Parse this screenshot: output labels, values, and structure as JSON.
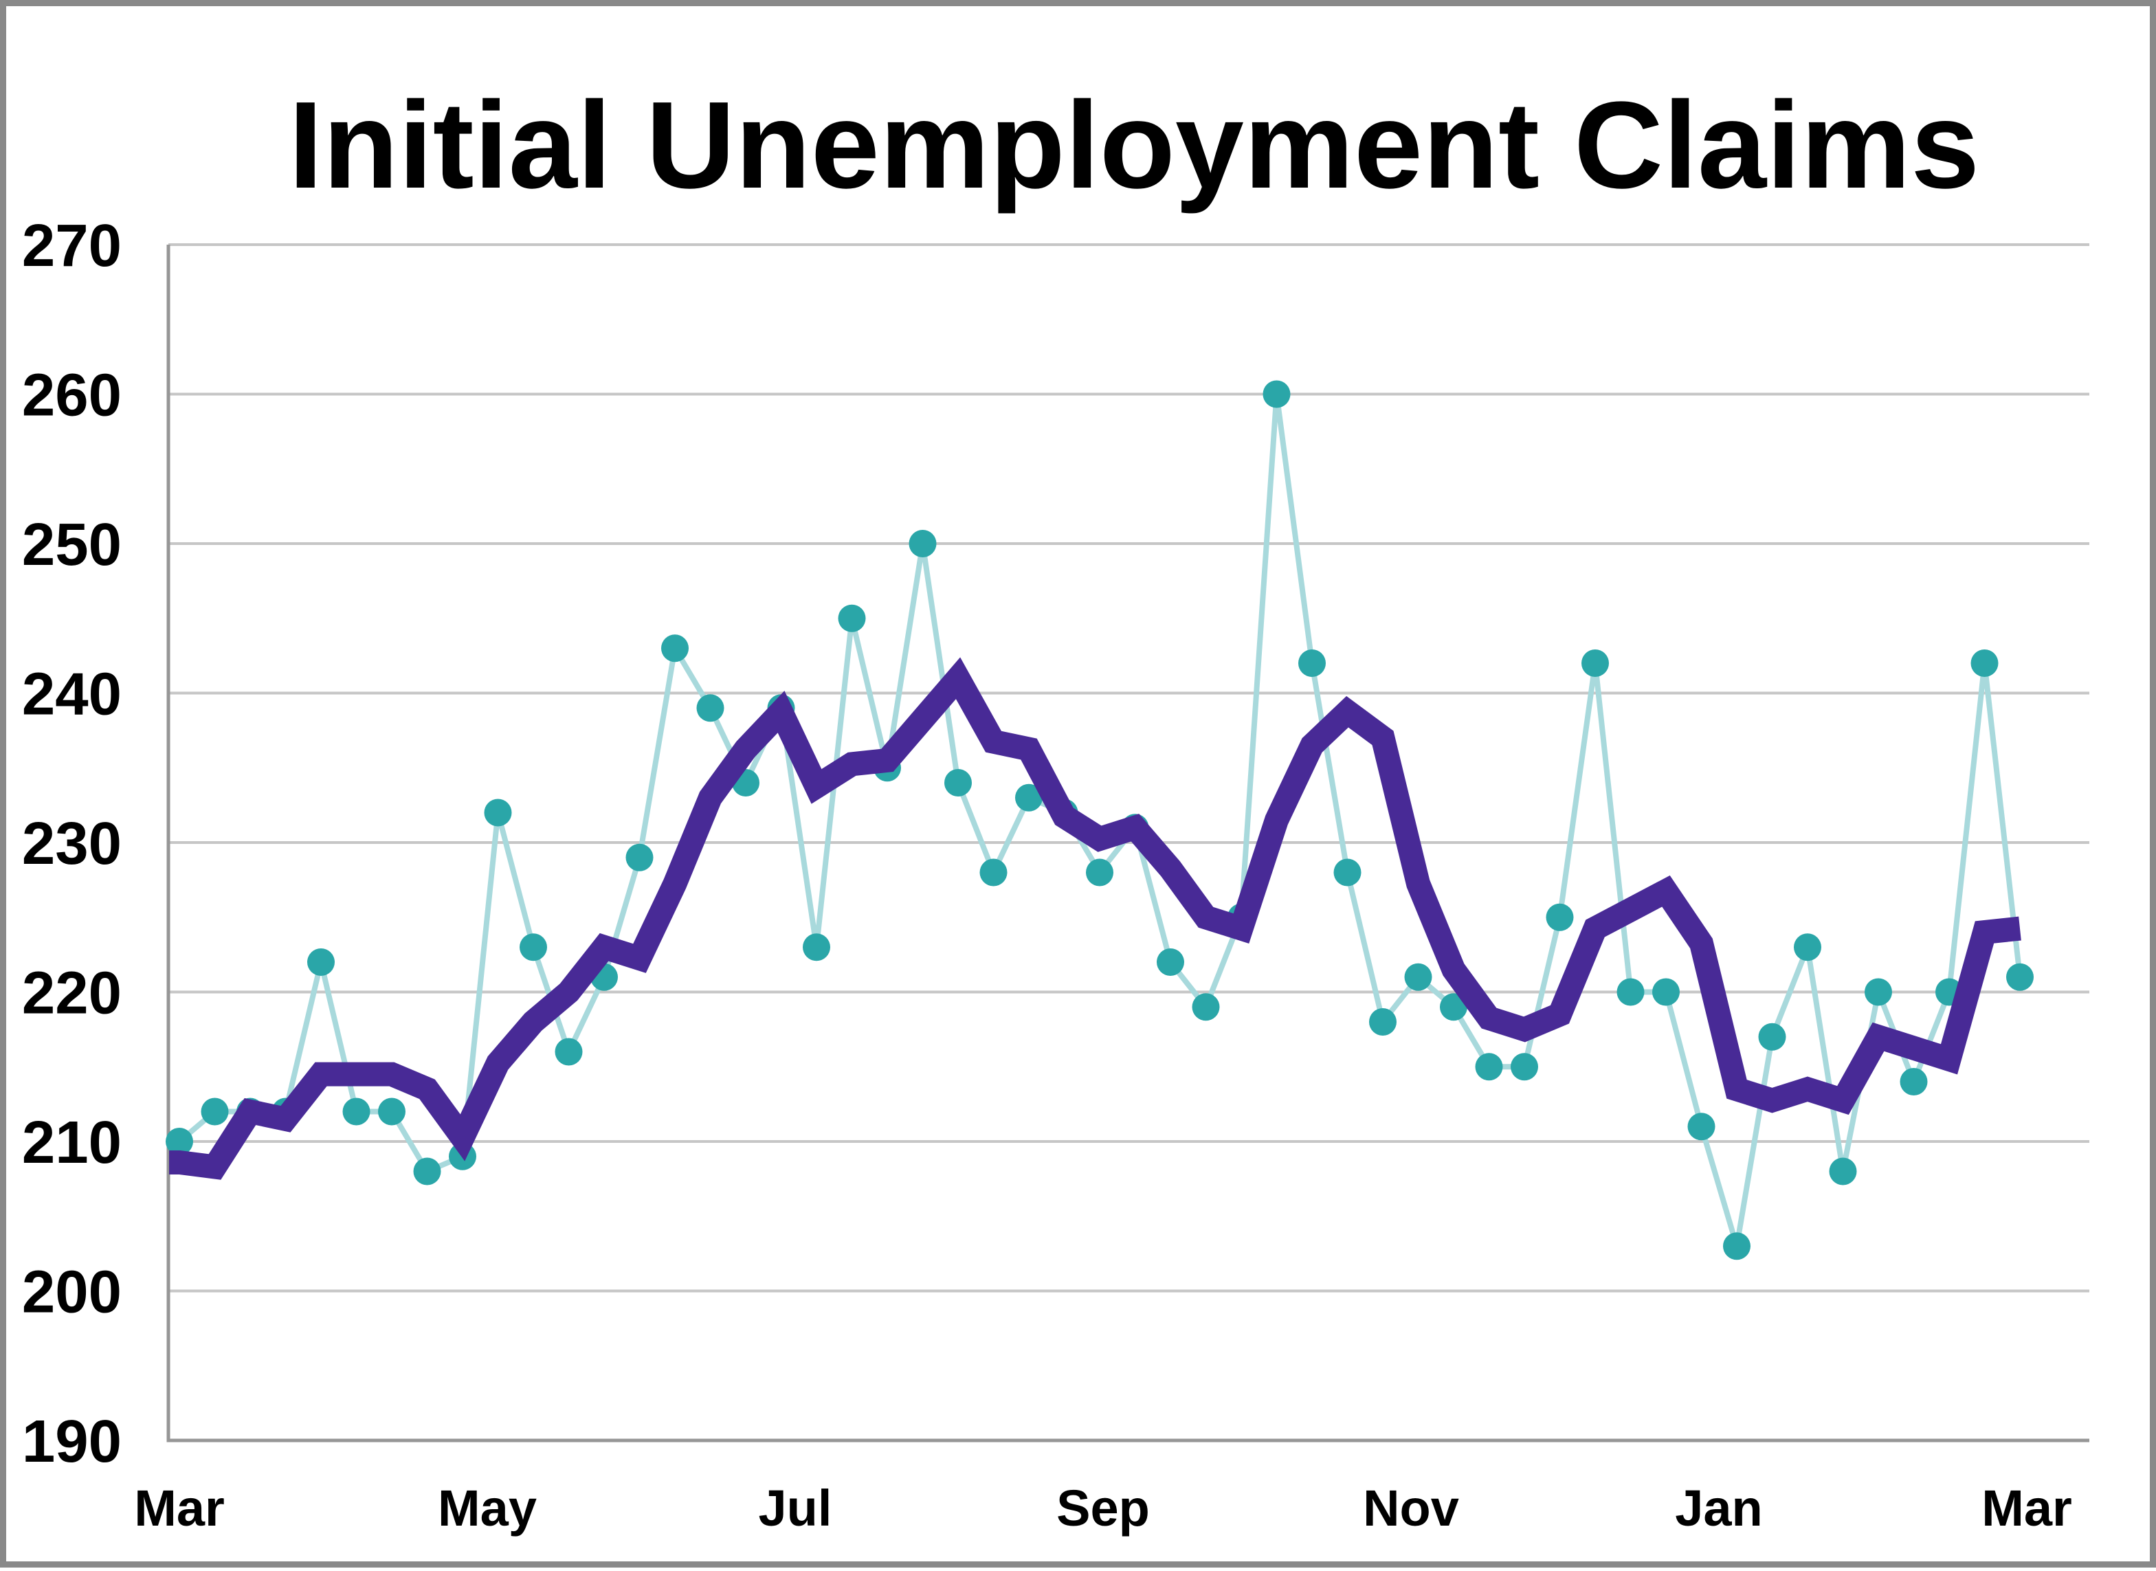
{
  "title": "Initial Unemployment Claims",
  "colors": {
    "background": "#FFFFFF",
    "frame_border": "#898989",
    "gridline": "#C6C6C6",
    "axis_spine": "#969696",
    "text": "#000000",
    "weekly_marker": "#2AA6A8",
    "weekly_connector": "#A8D9DC",
    "moving_average": "#482A96"
  },
  "chart_data": {
    "type": "line",
    "title": "Initial Unemployment Claims",
    "xlabel": "",
    "ylabel": "",
    "ylim": [
      190,
      270
    ],
    "y_ticks": [
      190,
      200,
      210,
      220,
      230,
      240,
      250,
      260,
      270
    ],
    "x_tick_labels": [
      "Mar",
      "May",
      "Jul",
      "Sep",
      "Nov",
      "Jan",
      "Mar"
    ],
    "grid": "horizontal",
    "legend": "none",
    "x_unit": "week",
    "series": [
      {
        "name": "weekly_initial_claims_thousands",
        "style": "line_with_markers",
        "marker_color": "#2AA6A8",
        "line_color": "#A8D9DC",
        "values": [
          210,
          212,
          212,
          212,
          222,
          212,
          212,
          208,
          209,
          232,
          223,
          216,
          221,
          229,
          243,
          239,
          234,
          239,
          223,
          245,
          235,
          250,
          234,
          228,
          233,
          232,
          228,
          231,
          222,
          219,
          225,
          260,
          242,
          228,
          218,
          221,
          219,
          215,
          215,
          225,
          242,
          220,
          220,
          211,
          203,
          217,
          223,
          208,
          220,
          214,
          220,
          242,
          221
        ]
      },
      {
        "name": "four_week_moving_average_thousands",
        "style": "line",
        "line_color": "#482A96",
        "values": [
          208.6,
          208.3,
          212,
          211.5,
          214.5,
          214.5,
          214.5,
          213.5,
          210.25,
          215.25,
          218,
          220,
          223,
          222.25,
          227.25,
          233,
          236.25,
          238.75,
          233.75,
          235.25,
          235.5,
          238.25,
          241,
          236.75,
          236.25,
          231.75,
          230.25,
          231,
          228.25,
          225,
          224.25,
          231.5,
          236.5,
          238.75,
          237,
          227.25,
          221.5,
          218.25,
          217.5,
          218.5,
          224.25,
          225.5,
          226.75,
          223.25,
          213.5,
          212.75,
          213.5,
          212.75,
          217,
          216.25,
          215.5,
          224,
          224.25
        ]
      }
    ]
  }
}
